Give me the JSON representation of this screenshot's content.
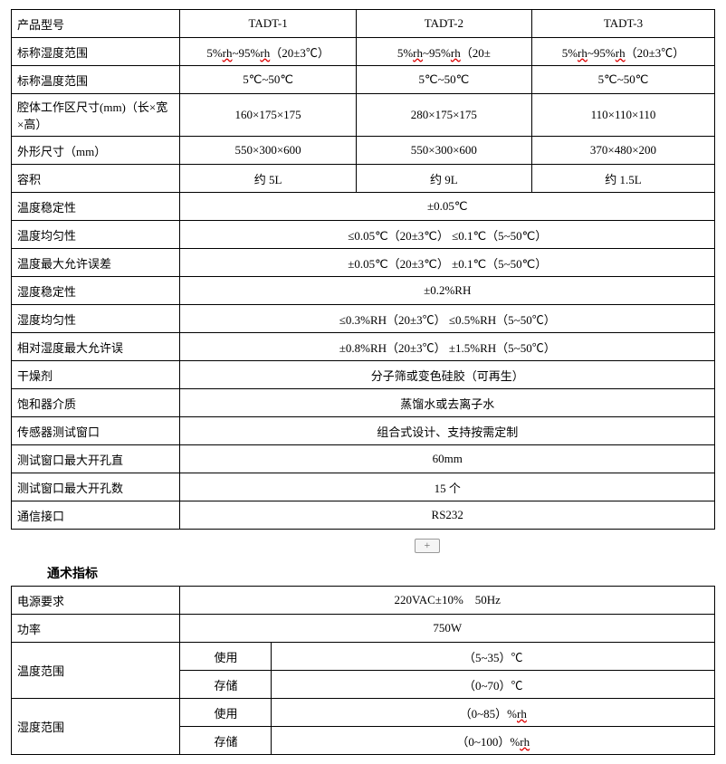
{
  "t1": {
    "cols": [
      "24%",
      "25%",
      "25%",
      "26%"
    ],
    "head": [
      "产品型号",
      "TADT-1",
      "TADT-2",
      "TADT-3"
    ],
    "rows": [
      {
        "lbl": "标称湿度范围",
        "cells": [
          "5%rh~95%rh（20±3℃）",
          "5%rh~95%rh（20±",
          "5%rh~95%rh（20±3℃）"
        ],
        "rhUnderline": true
      },
      {
        "lbl": "标称温度范围",
        "cells": [
          "5℃~50℃",
          "5℃~50℃",
          "5℃~50℃"
        ]
      },
      {
        "lbl": "腔体工作区尺寸(mm)（长×宽×高）",
        "cells": [
          "160×175×175",
          "280×175×175",
          "110×110×110"
        ]
      },
      {
        "lbl": "外形尺寸（mm）",
        "cells": [
          "550×300×600",
          "550×300×600",
          "370×480×200"
        ]
      },
      {
        "lbl": "容积",
        "cells": [
          "约 5L",
          "约 9L",
          "约 1.5L"
        ]
      },
      {
        "lbl": "温度稳定性",
        "span": "±0.05℃"
      },
      {
        "lbl": "温度均匀性",
        "span": "≤0.05℃（20±3℃） ≤0.1℃（5~50℃）"
      },
      {
        "lbl": "温度最大允许误差",
        "span": "±0.05℃（20±3℃）  ±0.1℃（5~50℃）"
      },
      {
        "lbl": "湿度稳定性",
        "span": "±0.2%RH"
      },
      {
        "lbl": "湿度均匀性",
        "span": "≤0.3%RH（20±3℃） ≤0.5%RH（5~50℃）"
      },
      {
        "lbl": "相对湿度最大允许误",
        "span": "±0.8%RH（20±3℃）  ±1.5%RH（5~50℃）"
      },
      {
        "lbl": "干燥剂",
        "span": "分子筛或变色硅胶（可再生）"
      },
      {
        "lbl": "饱和器介质",
        "span": "蒸馏水或去离子水"
      },
      {
        "lbl": "传感器测试窗口",
        "span": "组合式设计、支持按需定制"
      },
      {
        "lbl": "测试窗口最大开孔直",
        "span": "60mm"
      },
      {
        "lbl": "测试窗口最大开孔数",
        "span": "15 个"
      },
      {
        "lbl": "通信接口",
        "span": "RS232"
      }
    ]
  },
  "section2_title": "通术指标",
  "t2": {
    "cols": [
      "24%",
      "13%",
      "63%"
    ],
    "rows": [
      {
        "lbl": "电源要求",
        "span": "220VAC±10%     50Hz"
      },
      {
        "lbl": "功率",
        "span": "750W"
      },
      {
        "lbl": "温度范围",
        "sub": [
          [
            "使用",
            "（5~35）℃"
          ],
          [
            "存储",
            "（0~70）℃"
          ]
        ]
      },
      {
        "lbl": "湿度范围",
        "sub": [
          [
            "使用",
            "（0~85）%rh"
          ],
          [
            "存储",
            "（0~100）%rh"
          ]
        ],
        "rhUnderline": true
      }
    ]
  },
  "plus": "+"
}
